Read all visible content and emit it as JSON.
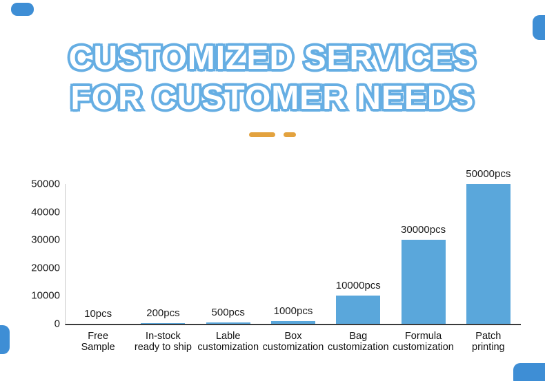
{
  "page": {
    "title_line1": "CUSTOMIZED SERVICES",
    "title_line2": "FOR CUSTOMER NEEDS",
    "outline_blue": "#66AEE3",
    "corner_blue": "#3E8ED5",
    "dash_orange": "#E3A23E"
  },
  "chart_data": {
    "type": "bar",
    "title": "",
    "xlabel": "",
    "ylabel": "",
    "categories": [
      "Free Sample",
      "In-stock ready to ship",
      "Lable customization",
      "Box customization",
      "Bag customization",
      "Formula customization",
      "Patch printing"
    ],
    "category_lines": [
      [
        "Free",
        "Sample"
      ],
      [
        "In-stock",
        "ready to ship"
      ],
      [
        "Lable",
        "customization"
      ],
      [
        "Box",
        "customization"
      ],
      [
        "Bag",
        "customization"
      ],
      [
        "Formula",
        "customization"
      ],
      [
        "Patch",
        "printing"
      ]
    ],
    "values": [
      10,
      200,
      500,
      1000,
      10000,
      30000,
      50000
    ],
    "value_labels": [
      "10pcs",
      "200pcs",
      "500pcs",
      "1000pcs",
      "10000pcs",
      "30000pcs",
      "50000pcs"
    ],
    "yticks": [
      0,
      10000,
      20000,
      30000,
      40000,
      50000
    ],
    "ylim": [
      0,
      50000
    ],
    "bar_color": "#5AA7DB",
    "grid": false,
    "legend": false
  }
}
